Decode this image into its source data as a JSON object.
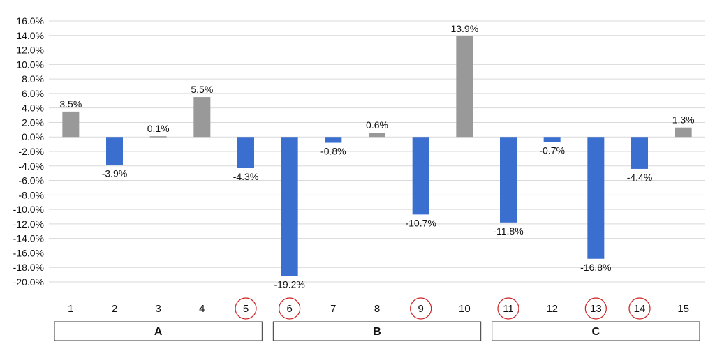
{
  "chart_data": {
    "type": "bar",
    "title": "",
    "xlabel": "",
    "ylabel": "",
    "categories": [
      "1",
      "2",
      "3",
      "4",
      "5",
      "6",
      "7",
      "8",
      "9",
      "10",
      "11",
      "12",
      "13",
      "14",
      "15"
    ],
    "values": [
      3.5,
      -3.9,
      0.1,
      5.5,
      -4.3,
      -19.2,
      -0.8,
      0.6,
      -10.7,
      13.9,
      -11.8,
      -0.7,
      -16.8,
      -4.4,
      1.3
    ],
    "data_labels": [
      "3.5%",
      "-3.9%",
      "0.1%",
      "5.5%",
      "-4.3%",
      "-19.2%",
      "-0.8%",
      "0.6%",
      "-10.7%",
      "13.9%",
      "-11.8%",
      "-0.7%",
      "-16.8%",
      "-4.4%",
      "1.3%"
    ],
    "ylim": [
      -20,
      16
    ],
    "y_ticks": [
      16,
      14,
      12,
      10,
      8,
      6,
      4,
      2,
      0,
      -2,
      -4,
      -6,
      -8,
      -10,
      -12,
      -14,
      -16,
      -18,
      -20
    ],
    "y_tick_labels": [
      "16.0%",
      "14.0%",
      "12.0%",
      "10.0%",
      "8.0%",
      "6.0%",
      "4.0%",
      "2.0%",
      "0.0%",
      "-2.0%",
      "-4.0%",
      "-6.0%",
      "-8.0%",
      "-10.0%",
      "-12.0%",
      "-14.0%",
      "-16.0%",
      "-18.0%",
      "-20.0%"
    ],
    "circled_categories": [
      "5",
      "6",
      "9",
      "11",
      "13",
      "14"
    ],
    "groups": [
      {
        "label": "A",
        "categories": [
          "1",
          "2",
          "3",
          "4",
          "5"
        ]
      },
      {
        "label": "B",
        "categories": [
          "6",
          "7",
          "8",
          "9",
          "10"
        ]
      },
      {
        "label": "C",
        "categories": [
          "11",
          "12",
          "13",
          "14",
          "15"
        ]
      }
    ],
    "grid": true,
    "legend": "none",
    "colors": {
      "positive": "#999999",
      "negative": "#3a6fd0",
      "circle": "#cc2222",
      "grid": "#d9d9d9"
    }
  }
}
